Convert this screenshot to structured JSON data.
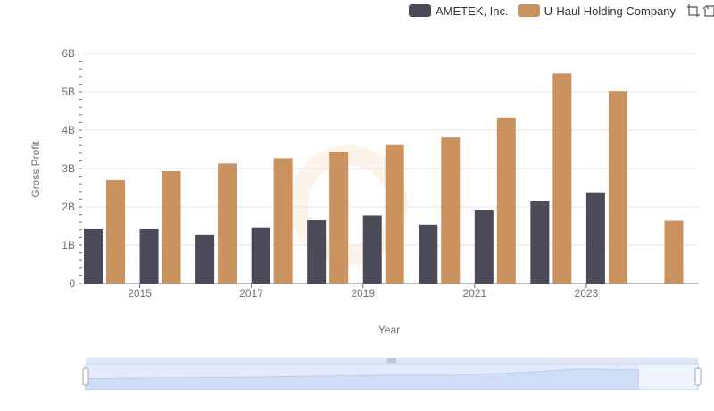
{
  "legend": {
    "items": [
      {
        "label": "AMETEK, Inc.",
        "color": "#4a4a58"
      },
      {
        "label": "U-Haul Holding Company",
        "color": "#c9925f"
      }
    ],
    "tools": [
      "zoom-icon",
      "zoom-reset-icon"
    ]
  },
  "chart_data": {
    "type": "bar",
    "xlabel": "Year",
    "ylabel": "Gross Profit",
    "ylim": [
      0,
      6000000000
    ],
    "y_ticks": [
      "0",
      "1B",
      "2B",
      "3B",
      "4B",
      "5B",
      "6B"
    ],
    "x_tick_labels": [
      "2015",
      "2017",
      "2019",
      "2021",
      "2023"
    ],
    "categories": [
      "2014",
      "2015",
      "2016",
      "2017",
      "2018",
      "2019",
      "2020",
      "2021",
      "2022",
      "2023",
      "2024"
    ],
    "series": [
      {
        "name": "AMETEK, Inc.",
        "color": "#4a4a58",
        "values": [
          1420000000,
          1420000000,
          1260000000,
          1450000000,
          1650000000,
          1780000000,
          1540000000,
          1910000000,
          2140000000,
          2380000000,
          null
        ]
      },
      {
        "name": "U-Haul Holding Company",
        "color": "#c9925f",
        "values": [
          2700000000,
          2930000000,
          3130000000,
          3270000000,
          3440000000,
          3610000000,
          3810000000,
          4330000000,
          5480000000,
          5020000000,
          1640000000
        ]
      }
    ],
    "grid": true,
    "legend_position": "top-right",
    "has_zoom_slider": true
  }
}
